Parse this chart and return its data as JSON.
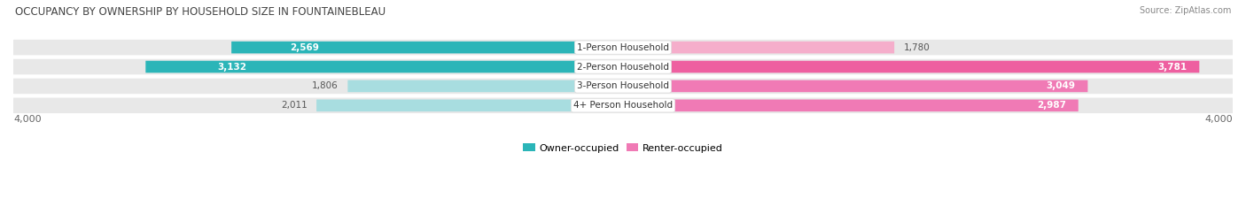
{
  "title": "OCCUPANCY BY OWNERSHIP BY HOUSEHOLD SIZE IN FOUNTAINEBLEAU",
  "source": "Source: ZipAtlas.com",
  "categories": [
    "1-Person Household",
    "2-Person Household",
    "3-Person Household",
    "4+ Person Household"
  ],
  "owner_values": [
    2569,
    3132,
    1806,
    2011
  ],
  "renter_values": [
    1780,
    3781,
    3049,
    2987
  ],
  "x_max": 4000,
  "owner_color_dark": "#2BB5B8",
  "owner_color_light": "#A8DDE0",
  "renter_color_dark": "#EE5FA0",
  "renter_color_mid": "#F07AB5",
  "renter_color_light": "#F5AECB",
  "row_bg_color": "#EBEBEB",
  "row_bg_outer": "#F5F5F5",
  "label_color_dark": "#555555",
  "legend_owner": "Owner-occupied",
  "legend_renter": "Renter-occupied",
  "axis_label": "4,000",
  "owner_colors_by_row": [
    "#2BB5B8",
    "#2BB5B8",
    "#A8DDE0",
    "#A8DDE0"
  ],
  "renter_colors_by_row": [
    "#F5AECB",
    "#EE5FA0",
    "#F07AB5",
    "#F07AB5"
  ]
}
